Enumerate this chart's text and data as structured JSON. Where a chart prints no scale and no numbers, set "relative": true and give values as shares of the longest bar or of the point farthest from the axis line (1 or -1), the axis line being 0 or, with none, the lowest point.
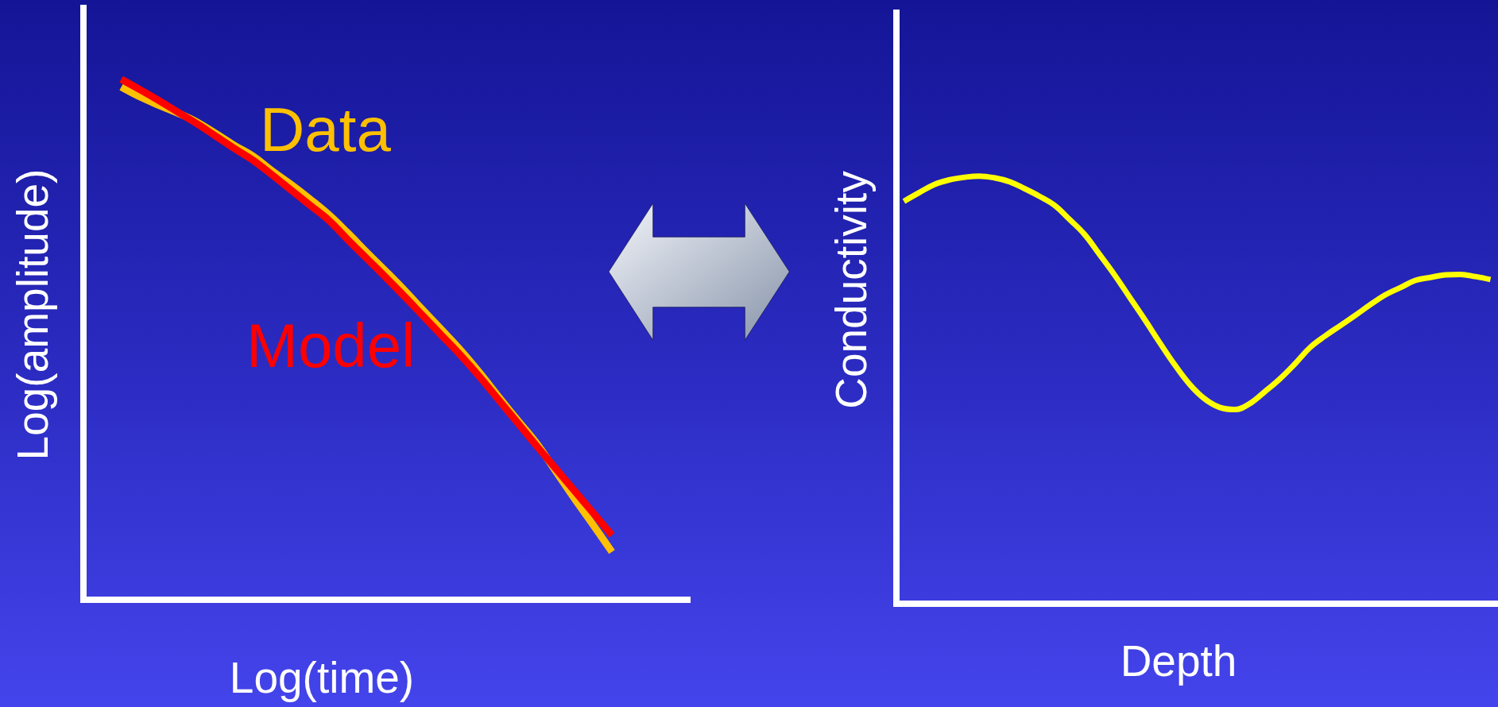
{
  "chart_data": [
    {
      "type": "line",
      "xlabel": "Log(time)",
      "ylabel": "Log(amplitude)",
      "relative": true,
      "categories": [
        null,
        null,
        null,
        null,
        null,
        null,
        null,
        null,
        null,
        null,
        null,
        null,
        null,
        null,
        null,
        null,
        null,
        null,
        null,
        null,
        null,
        null,
        null,
        null,
        null,
        null,
        null,
        null,
        null,
        null,
        null,
        null,
        null
      ],
      "series": [
        {
          "name": "Data",
          "color": "#ffc000",
          "values": [
            null,
            null,
            0.985,
            0.966,
            0.95,
            0.935,
            0.918,
            0.896,
            0.873,
            0.852,
            0.824,
            0.798,
            0.77,
            0.74,
            0.705,
            0.668,
            0.632,
            0.595,
            0.556,
            0.518,
            0.479,
            0.436,
            0.39,
            0.345,
            0.301,
            0.248,
            0.195,
            0.144,
            0.092,
            null,
            null,
            null,
            null
          ]
        },
        {
          "name": "Model",
          "color": "#ff0000",
          "values": [
            null,
            null,
            1,
            0.98,
            0.959,
            0.937,
            0.915,
            0.891,
            0.867,
            0.844,
            0.816,
            0.787,
            0.758,
            0.729,
            0.692,
            0.656,
            0.62,
            0.583,
            0.545,
            0.507,
            0.469,
            0.428,
            0.384,
            0.34,
            0.296,
            0.253,
            0.21,
            0.167,
            0.124,
            null,
            null,
            null,
            null
          ]
        }
      ]
    },
    {
      "type": "line",
      "xlabel": "Depth",
      "ylabel": "Conductivity",
      "relative": true,
      "categories": [
        null,
        null,
        null,
        null,
        null,
        null,
        null,
        null,
        null,
        null,
        null,
        null,
        null,
        null,
        null,
        null,
        null,
        null,
        null,
        null,
        null,
        null,
        null,
        null,
        null,
        null,
        null,
        null,
        null,
        null,
        null,
        null,
        null,
        null,
        null,
        null,
        null,
        null,
        null,
        null
      ],
      "series": [
        {
          "color": "#ffff00",
          "values": [
            0.941,
            0.961,
            0.98,
            0.991,
            0.997,
            1,
            0.996,
            0.987,
            0.971,
            0.953,
            0.932,
            0.899,
            0.864,
            0.817,
            0.769,
            0.717,
            0.665,
            0.611,
            0.559,
            0.513,
            0.479,
            0.459,
            0.454,
            0.468,
            0.496,
            0.526,
            0.561,
            0.599,
            0.626,
            0.65,
            0.674,
            0.699,
            0.722,
            0.739,
            0.756,
            0.763,
            0.769,
            0.77,
            0.765,
            0.758
          ]
        }
      ]
    }
  ]
}
